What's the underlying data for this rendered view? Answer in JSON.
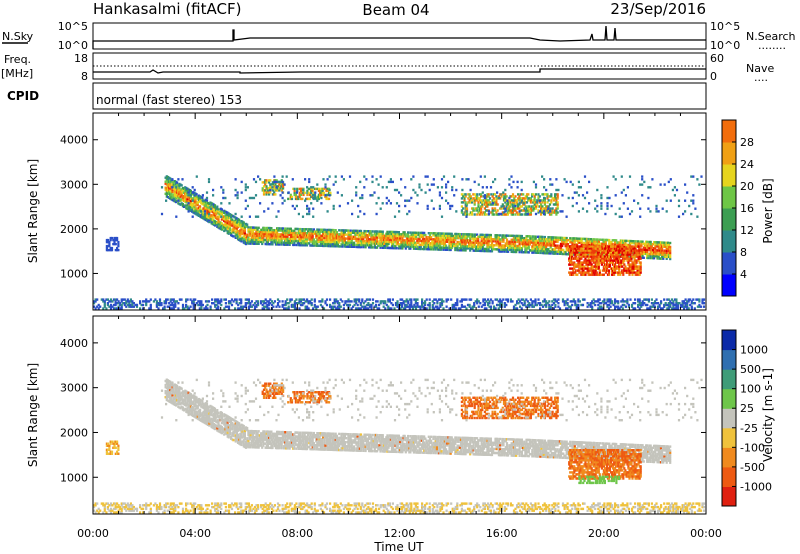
{
  "header": {
    "station": "Hankasalmi (fitACF)",
    "beam": "Beam 04",
    "date": "23/Sep/2016"
  },
  "status_panel": {
    "nsky_label": "N.Sky",
    "nsearch_label": "N.Search",
    "nsearch_legend": "........",
    "freq_label": "Freq.",
    "freq_unit": "[MHz]",
    "nave_label": "Nave",
    "nave_legend": "....",
    "cpid_label": "CPID",
    "cpid_text": "normal (fast stereo) 153",
    "noise_ticks_left": [
      "10^5",
      "10^0"
    ],
    "noise_ticks_right": [
      "10^5",
      "10^0"
    ],
    "freq_ticks": [
      "18",
      "8"
    ],
    "nave_ticks": [
      "60",
      "0"
    ]
  },
  "chart_data": [
    {
      "type": "heatmap",
      "name": "power",
      "ylabel": "Slant Range [km]",
      "xlabel": "",
      "xlim": [
        0,
        24
      ],
      "ylim": [
        180,
        4600
      ],
      "yticks": [
        1000,
        2000,
        3000,
        4000
      ],
      "colorbar": {
        "label": "Power [dB]",
        "ticks": [
          "4",
          "8",
          "12",
          "16",
          "20",
          "24",
          "28"
        ],
        "range": [
          0,
          30
        ],
        "colors": [
          "#0000ff",
          "#2a4fc8",
          "#2f8a8a",
          "#3c9e52",
          "#6ec646",
          "#e6d41e",
          "#f0a014",
          "#f26d0c",
          "#ee3a0a",
          "#e00000"
        ]
      }
    },
    {
      "type": "heatmap",
      "name": "velocity",
      "ylabel": "Slant Range [km]",
      "xlabel": "Time UT",
      "xlim": [
        0,
        24
      ],
      "ylim": [
        180,
        4600
      ],
      "yticks": [
        1000,
        2000,
        3000,
        4000
      ],
      "xticks": [
        "00:00",
        "04:00",
        "08:00",
        "12:00",
        "16:00",
        "20:00",
        "00:00"
      ],
      "colorbar": {
        "label": "Velocity [m s-1]",
        "ticks": [
          "1000",
          "500",
          "100",
          "25",
          "-25",
          "-100",
          "-500",
          "-1000"
        ],
        "colors": [
          "#0b2aa8",
          "#2f6fb0",
          "#3f9c78",
          "#6ec64a",
          "#c4c4bc",
          "#efc23c",
          "#f08a1e",
          "#ee5a12",
          "#e02010"
        ]
      }
    }
  ]
}
